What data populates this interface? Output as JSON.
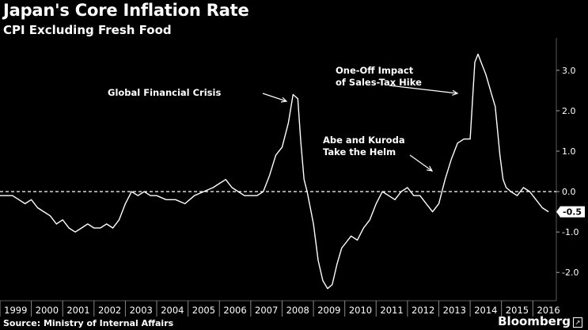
{
  "header": {
    "title": "Japan's Core Inflation Rate",
    "subtitle": "CPI Excluding Fresh Food"
  },
  "footer": {
    "source": "Source: Ministry of Internal Affairs",
    "brand": "Bloomberg"
  },
  "colors": {
    "background": "#000000",
    "line": "#ffffff",
    "grid": "#5a5a5a"
  },
  "chart_data": {
    "type": "line",
    "title": "Japan's Core Inflation Rate",
    "subtitle": "CPI Excluding Fresh Food",
    "xlabel": "",
    "ylabel": "",
    "xlim": [
      1999.0,
      2016.75
    ],
    "ylim": [
      -2.7,
      3.8
    ],
    "x_ticks": [
      "1999",
      "2000",
      "2001",
      "2002",
      "2003",
      "2004",
      "2005",
      "2006",
      "2007",
      "2008",
      "2009",
      "2010",
      "2011",
      "2012",
      "2013",
      "2014",
      "2015",
      "2016"
    ],
    "y_ticks": [
      3.0,
      2.0,
      1.0,
      0.0,
      -1.0,
      -2.0
    ],
    "y_tick_labels": [
      "3.0",
      "2.0",
      "1.0",
      "0.0",
      "-1.0",
      "-2.0"
    ],
    "grid": true,
    "reference_line": 0.0,
    "last_value_label": "-0.5",
    "series": [
      {
        "x": [
          1999.0,
          1999.4,
          1999.6,
          1999.8,
          2000.0,
          2000.2,
          2000.4,
          2000.6,
          2000.8,
          2001.0,
          2001.2,
          2001.4,
          2001.6,
          2001.8,
          2002.0,
          2002.2,
          2002.4,
          2002.6,
          2002.8,
          2003.0,
          2003.2,
          2003.4,
          2003.6,
          2003.8,
          2004.0,
          2004.3,
          2004.6,
          2004.9,
          2005.2,
          2005.5,
          2005.8,
          2006.0,
          2006.2,
          2006.4,
          2006.6,
          2006.8,
          2007.0,
          2007.2,
          2007.4,
          2007.6,
          2007.8,
          2008.0,
          2008.2,
          2008.35,
          2008.5,
          2008.6,
          2008.7,
          2008.8,
          2008.9,
          2009.0,
          2009.15,
          2009.3,
          2009.45,
          2009.6,
          2009.75,
          2009.9,
          2010.0,
          2010.2,
          2010.4,
          2010.6,
          2010.8,
          2011.0,
          2011.2,
          2011.4,
          2011.6,
          2011.8,
          2012.0,
          2012.2,
          2012.4,
          2012.6,
          2012.8,
          2013.0,
          2013.2,
          2013.4,
          2013.6,
          2013.8,
          2014.0,
          2014.15,
          2014.25,
          2014.35,
          2014.5,
          2014.65,
          2014.8,
          2014.95,
          2015.05,
          2015.15,
          2015.3,
          2015.5,
          2015.7,
          2015.9,
          2016.1,
          2016.3,
          2016.5
        ],
        "y": [
          -0.1,
          -0.1,
          -0.2,
          -0.3,
          -0.2,
          -0.4,
          -0.5,
          -0.6,
          -0.8,
          -0.7,
          -0.9,
          -1.0,
          -0.9,
          -0.8,
          -0.9,
          -0.9,
          -0.8,
          -0.9,
          -0.7,
          -0.3,
          0.0,
          -0.1,
          0.0,
          -0.1,
          -0.1,
          -0.2,
          -0.2,
          -0.3,
          -0.1,
          0.0,
          0.1,
          0.2,
          0.3,
          0.1,
          0.0,
          -0.1,
          -0.1,
          -0.1,
          0.0,
          0.4,
          0.9,
          1.1,
          1.7,
          2.4,
          2.3,
          1.2,
          0.3,
          0.0,
          -0.4,
          -0.8,
          -1.7,
          -2.2,
          -2.4,
          -2.3,
          -1.8,
          -1.4,
          -1.3,
          -1.1,
          -1.2,
          -0.9,
          -0.7,
          -0.3,
          0.0,
          -0.1,
          -0.2,
          0.0,
          0.1,
          -0.1,
          -0.1,
          -0.3,
          -0.5,
          -0.3,
          0.3,
          0.8,
          1.2,
          1.3,
          1.3,
          3.2,
          3.4,
          3.2,
          2.9,
          2.5,
          2.1,
          0.9,
          0.3,
          0.1,
          0.0,
          -0.1,
          0.1,
          0.0,
          -0.2,
          -0.4,
          -0.5
        ]
      }
    ],
    "annotations": [
      {
        "lines": [
          "Global Financial Crisis"
        ]
      },
      {
        "lines": [
          "One-Off Impact",
          "of Sales-Tax Hike"
        ]
      },
      {
        "lines": [
          "Abe and Kuroda",
          "Take the Helm"
        ]
      }
    ]
  }
}
